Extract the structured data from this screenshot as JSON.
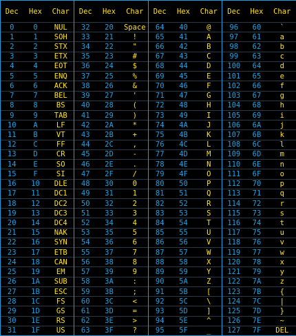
{
  "headers": [
    "Dec",
    "Hex",
    "Char"
  ],
  "columns": [
    {
      "rows": [
        [
          "0",
          "0",
          "NUL"
        ],
        [
          "1",
          "1",
          "SOH"
        ],
        [
          "2",
          "2",
          "STX"
        ],
        [
          "3",
          "3",
          "ETX"
        ],
        [
          "4",
          "4",
          "EOT"
        ],
        [
          "5",
          "5",
          "ENQ"
        ],
        [
          "6",
          "6",
          "ACK"
        ],
        [
          "7",
          "7",
          "BEL"
        ],
        [
          "8",
          "8",
          "BS"
        ],
        [
          "9",
          "9",
          "TAB"
        ],
        [
          "10",
          "A",
          "LF"
        ],
        [
          "11",
          "B",
          "VT"
        ],
        [
          "12",
          "C",
          "FF"
        ],
        [
          "13",
          "D",
          "CR"
        ],
        [
          "14",
          "E",
          "SO"
        ],
        [
          "15",
          "F",
          "SI"
        ],
        [
          "16",
          "10",
          "DLE"
        ],
        [
          "17",
          "11",
          "DC1"
        ],
        [
          "18",
          "12",
          "DC2"
        ],
        [
          "19",
          "13",
          "DC3"
        ],
        [
          "20",
          "14",
          "DC4"
        ],
        [
          "21",
          "15",
          "NAK"
        ],
        [
          "22",
          "16",
          "SYN"
        ],
        [
          "23",
          "17",
          "ETB"
        ],
        [
          "24",
          "18",
          "CAN"
        ],
        [
          "25",
          "19",
          "EM"
        ],
        [
          "26",
          "1A",
          "SUB"
        ],
        [
          "27",
          "1B",
          "ESC"
        ],
        [
          "28",
          "1C",
          "FS"
        ],
        [
          "29",
          "1D",
          "GS"
        ],
        [
          "30",
          "1E",
          "RS"
        ],
        [
          "31",
          "1F",
          "US"
        ]
      ]
    },
    {
      "rows": [
        [
          "32",
          "20",
          "Space"
        ],
        [
          "33",
          "21",
          "!"
        ],
        [
          "34",
          "22",
          "\""
        ],
        [
          "35",
          "23",
          "#"
        ],
        [
          "36",
          "24",
          "$"
        ],
        [
          "37",
          "25",
          "%"
        ],
        [
          "38",
          "26",
          "&"
        ],
        [
          "39",
          "27",
          "'"
        ],
        [
          "40",
          "28",
          "("
        ],
        [
          "41",
          "29",
          ")"
        ],
        [
          "42",
          "2A",
          "*"
        ],
        [
          "43",
          "2B",
          "+"
        ],
        [
          "44",
          "2C",
          ","
        ],
        [
          "45",
          "2D",
          "-"
        ],
        [
          "46",
          "2E",
          "."
        ],
        [
          "47",
          "2F",
          "/"
        ],
        [
          "48",
          "30",
          "0"
        ],
        [
          "49",
          "31",
          "1"
        ],
        [
          "50",
          "32",
          "2"
        ],
        [
          "51",
          "33",
          "3"
        ],
        [
          "52",
          "34",
          "4"
        ],
        [
          "53",
          "35",
          "5"
        ],
        [
          "54",
          "36",
          "6"
        ],
        [
          "55",
          "37",
          "7"
        ],
        [
          "56",
          "38",
          "8"
        ],
        [
          "57",
          "39",
          "9"
        ],
        [
          "58",
          "3A",
          ":"
        ],
        [
          "59",
          "3B",
          ";"
        ],
        [
          "60",
          "3C",
          "<"
        ],
        [
          "61",
          "3D",
          "="
        ],
        [
          "62",
          "3E",
          ">"
        ],
        [
          "63",
          "3F",
          "?"
        ]
      ]
    },
    {
      "rows": [
        [
          "64",
          "40",
          "@"
        ],
        [
          "65",
          "41",
          "A"
        ],
        [
          "66",
          "42",
          "B"
        ],
        [
          "67",
          "43",
          "C"
        ],
        [
          "68",
          "44",
          "D"
        ],
        [
          "69",
          "45",
          "E"
        ],
        [
          "70",
          "46",
          "F"
        ],
        [
          "71",
          "47",
          "G"
        ],
        [
          "72",
          "48",
          "H"
        ],
        [
          "73",
          "49",
          "I"
        ],
        [
          "74",
          "4A",
          "J"
        ],
        [
          "75",
          "4B",
          "K"
        ],
        [
          "76",
          "4C",
          "L"
        ],
        [
          "77",
          "4D",
          "M"
        ],
        [
          "78",
          "4E",
          "N"
        ],
        [
          "79",
          "4F",
          "O"
        ],
        [
          "80",
          "50",
          "P"
        ],
        [
          "81",
          "51",
          "Q"
        ],
        [
          "82",
          "52",
          "R"
        ],
        [
          "83",
          "53",
          "S"
        ],
        [
          "84",
          "54",
          "T"
        ],
        [
          "85",
          "55",
          "U"
        ],
        [
          "86",
          "56",
          "V"
        ],
        [
          "87",
          "57",
          "W"
        ],
        [
          "88",
          "58",
          "X"
        ],
        [
          "89",
          "59",
          "Y"
        ],
        [
          "90",
          "5A",
          "Z"
        ],
        [
          "91",
          "5B",
          "["
        ],
        [
          "92",
          "5C",
          "\\"
        ],
        [
          "93",
          "5D",
          "]"
        ],
        [
          "94",
          "5E",
          "^"
        ],
        [
          "95",
          "5F",
          "_"
        ]
      ]
    },
    {
      "rows": [
        [
          "96",
          "60",
          "`"
        ],
        [
          "97",
          "61",
          "a"
        ],
        [
          "98",
          "62",
          "b"
        ],
        [
          "99",
          "63",
          "c"
        ],
        [
          "100",
          "64",
          "d"
        ],
        [
          "101",
          "65",
          "e"
        ],
        [
          "102",
          "66",
          "f"
        ],
        [
          "103",
          "67",
          "g"
        ],
        [
          "104",
          "68",
          "h"
        ],
        [
          "105",
          "69",
          "i"
        ],
        [
          "106",
          "6A",
          "j"
        ],
        [
          "107",
          "6B",
          "k"
        ],
        [
          "108",
          "6C",
          "l"
        ],
        [
          "109",
          "6D",
          "m"
        ],
        [
          "110",
          "6E",
          "n"
        ],
        [
          "111",
          "6F",
          "o"
        ],
        [
          "112",
          "70",
          "p"
        ],
        [
          "113",
          "71",
          "q"
        ],
        [
          "114",
          "72",
          "r"
        ],
        [
          "115",
          "73",
          "s"
        ],
        [
          "116",
          "74",
          "t"
        ],
        [
          "117",
          "75",
          "u"
        ],
        [
          "118",
          "76",
          "v"
        ],
        [
          "119",
          "77",
          "w"
        ],
        [
          "120",
          "78",
          "x"
        ],
        [
          "121",
          "79",
          "y"
        ],
        [
          "122",
          "7A",
          "z"
        ],
        [
          "123",
          "7B",
          "{"
        ],
        [
          "124",
          "7C",
          "|"
        ],
        [
          "125",
          "7D",
          "}"
        ],
        [
          "126",
          "7E",
          "~"
        ],
        [
          "127",
          "7F",
          "DEL"
        ]
      ]
    }
  ],
  "colors": {
    "background": "#000000",
    "numbers": "#1aa3e6",
    "characters": "#ffe21a",
    "border": "#1c9fe0"
  }
}
